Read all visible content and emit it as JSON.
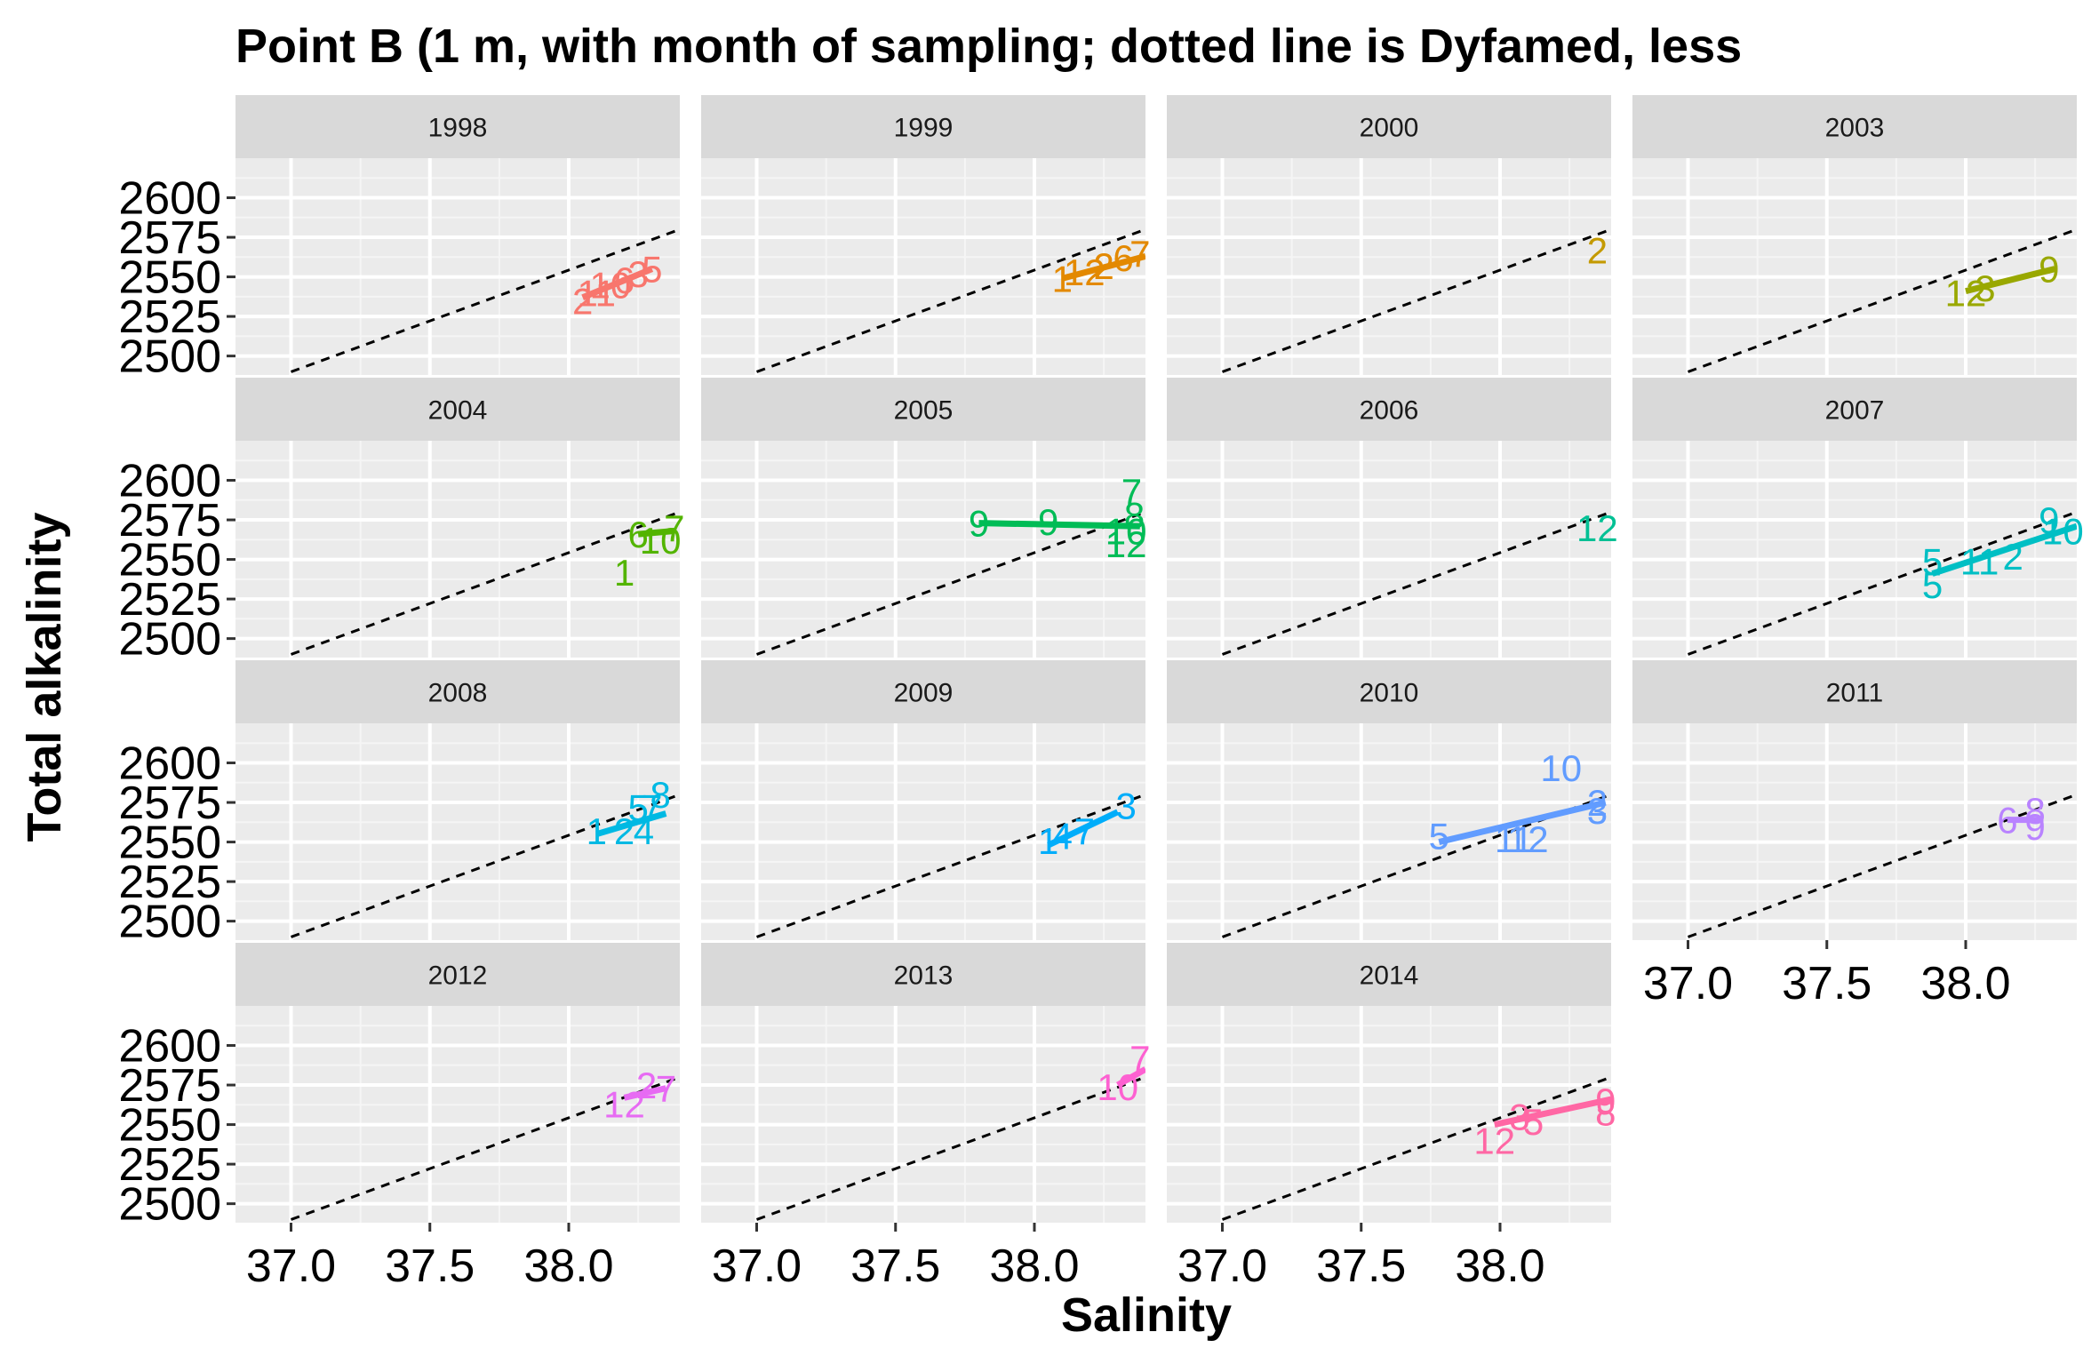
{
  "chart_data": {
    "type": "scatter",
    "title": "Point B (1 m, with month of sampling; dotted line is Dyfamed, less",
    "xlabel": "Salinity",
    "ylabel": "Total alkalinity",
    "xlim": [
      36.8,
      38.4
    ],
    "ylim": [
      2488,
      2625
    ],
    "x_ticks": [
      "37.0",
      "37.5",
      "38.0"
    ],
    "y_ticks": [
      "2500",
      "2525",
      "2550",
      "2575",
      "2600"
    ],
    "x_tick_values": [
      37.0,
      37.5,
      38.0
    ],
    "y_tick_values": [
      2500,
      2525,
      2550,
      2575,
      2600
    ],
    "reference_line": {
      "style": "dashed",
      "color": "#000000",
      "points": [
        [
          37.0,
          2490
        ],
        [
          38.4,
          2580
        ]
      ]
    },
    "panels": [
      {
        "label": "1998",
        "color": "#F8766D",
        "fit": [
          [
            38.05,
            2537
          ],
          [
            38.3,
            2555
          ]
        ],
        "points": [
          {
            "x": 38.05,
            "y": 2535,
            "m": "2"
          },
          {
            "x": 38.1,
            "y": 2540,
            "m": "11"
          },
          {
            "x": 38.15,
            "y": 2545,
            "m": "10"
          },
          {
            "x": 38.2,
            "y": 2548,
            "m": "6"
          },
          {
            "x": 38.25,
            "y": 2552,
            "m": "3"
          },
          {
            "x": 38.3,
            "y": 2555,
            "m": "5"
          }
        ]
      },
      {
        "label": "1999",
        "color": "#E38900",
        "fit": [
          [
            38.1,
            2549
          ],
          [
            38.4,
            2563
          ]
        ],
        "points": [
          {
            "x": 38.1,
            "y": 2549,
            "m": "1"
          },
          {
            "x": 38.18,
            "y": 2553,
            "m": "12"
          },
          {
            "x": 38.25,
            "y": 2557,
            "m": "2"
          },
          {
            "x": 38.32,
            "y": 2562,
            "m": "6"
          },
          {
            "x": 38.38,
            "y": 2565,
            "m": "7"
          }
        ]
      },
      {
        "label": "2000",
        "color": "#C49A00",
        "fit": [],
        "points": [
          {
            "x": 38.35,
            "y": 2567,
            "m": "2"
          }
        ]
      },
      {
        "label": "2003",
        "color": "#99A800",
        "fit": [
          [
            38.0,
            2541
          ],
          [
            38.32,
            2555
          ]
        ],
        "points": [
          {
            "x": 38.0,
            "y": 2540,
            "m": "12"
          },
          {
            "x": 38.07,
            "y": 2543,
            "m": "3"
          },
          {
            "x": 38.3,
            "y": 2555,
            "m": "9"
          }
        ]
      },
      {
        "label": "2004",
        "color": "#53B400",
        "fit": [
          [
            38.25,
            2566
          ],
          [
            38.38,
            2568
          ]
        ],
        "points": [
          {
            "x": 38.25,
            "y": 2566,
            "m": "6"
          },
          {
            "x": 38.2,
            "y": 2542,
            "m": "1"
          },
          {
            "x": 38.33,
            "y": 2562,
            "m": "10"
          },
          {
            "x": 38.38,
            "y": 2570,
            "m": "7"
          }
        ]
      },
      {
        "label": "2005",
        "color": "#00BC56",
        "fit": [
          [
            37.8,
            2573
          ],
          [
            38.38,
            2571
          ]
        ],
        "points": [
          {
            "x": 37.8,
            "y": 2573,
            "m": "9"
          },
          {
            "x": 38.05,
            "y": 2574,
            "m": "9"
          },
          {
            "x": 38.35,
            "y": 2593,
            "m": "7"
          },
          {
            "x": 38.36,
            "y": 2578,
            "m": "8"
          },
          {
            "x": 38.33,
            "y": 2568,
            "m": "10"
          },
          {
            "x": 38.33,
            "y": 2560,
            "m": "12"
          }
        ]
      },
      {
        "label": "2006",
        "color": "#00C094",
        "fit": [],
        "points": [
          {
            "x": 38.35,
            "y": 2570,
            "m": "12"
          }
        ]
      },
      {
        "label": "2007",
        "color": "#00BFC4",
        "fit": [
          [
            37.88,
            2541
          ],
          [
            38.4,
            2571
          ]
        ],
        "points": [
          {
            "x": 37.88,
            "y": 2534,
            "m": "5"
          },
          {
            "x": 37.88,
            "y": 2549,
            "m": "5"
          },
          {
            "x": 38.05,
            "y": 2549,
            "m": "11"
          },
          {
            "x": 38.17,
            "y": 2552,
            "m": "2"
          },
          {
            "x": 38.3,
            "y": 2575,
            "m": "9"
          },
          {
            "x": 38.35,
            "y": 2568,
            "m": "10"
          }
        ]
      },
      {
        "label": "2008",
        "color": "#00B9E3",
        "fit": [
          [
            38.1,
            2555
          ],
          [
            38.35,
            2568
          ]
        ],
        "points": [
          {
            "x": 38.1,
            "y": 2557,
            "m": "1"
          },
          {
            "x": 38.2,
            "y": 2557,
            "m": "2"
          },
          {
            "x": 38.27,
            "y": 2557,
            "m": "4"
          },
          {
            "x": 38.25,
            "y": 2572,
            "m": "5"
          },
          {
            "x": 38.3,
            "y": 2572,
            "m": "7"
          },
          {
            "x": 38.33,
            "y": 2580,
            "m": "8"
          }
        ]
      },
      {
        "label": "2009",
        "color": "#00ADFA",
        "fit": [
          [
            38.05,
            2548
          ],
          [
            38.3,
            2569
          ]
        ],
        "points": [
          {
            "x": 38.05,
            "y": 2551,
            "m": "1"
          },
          {
            "x": 38.1,
            "y": 2554,
            "m": "4"
          },
          {
            "x": 38.18,
            "y": 2557,
            "m": "7"
          },
          {
            "x": 38.33,
            "y": 2573,
            "m": "3"
          }
        ]
      },
      {
        "label": "2010",
        "color": "#619CFF",
        "fit": [
          [
            37.78,
            2550
          ],
          [
            38.38,
            2575
          ]
        ],
        "points": [
          {
            "x": 37.78,
            "y": 2554,
            "m": "5"
          },
          {
            "x": 38.05,
            "y": 2552,
            "m": "11"
          },
          {
            "x": 38.1,
            "y": 2552,
            "m": "12"
          },
          {
            "x": 38.35,
            "y": 2570,
            "m": "3"
          },
          {
            "x": 38.35,
            "y": 2575,
            "m": "2"
          },
          {
            "x": 38.22,
            "y": 2597,
            "m": "10"
          }
        ]
      },
      {
        "label": "2011",
        "color": "#B983FF",
        "fit": [
          [
            38.15,
            2564
          ],
          [
            38.28,
            2564
          ]
        ],
        "points": [
          {
            "x": 38.15,
            "y": 2564,
            "m": "6"
          },
          {
            "x": 38.25,
            "y": 2570,
            "m": "8"
          },
          {
            "x": 38.25,
            "y": 2560,
            "m": "9"
          }
        ]
      },
      {
        "label": "2012",
        "color": "#E76BF3",
        "fit": [
          [
            38.2,
            2567
          ],
          [
            38.35,
            2573
          ]
        ],
        "points": [
          {
            "x": 38.2,
            "y": 2563,
            "m": "12"
          },
          {
            "x": 38.28,
            "y": 2575,
            "m": "2"
          },
          {
            "x": 38.35,
            "y": 2573,
            "m": "7"
          }
        ]
      },
      {
        "label": "2013",
        "color": "#FD61D1",
        "fit": [
          [
            38.3,
            2575
          ],
          [
            38.4,
            2585
          ]
        ],
        "points": [
          {
            "x": 38.3,
            "y": 2574,
            "m": "10"
          },
          {
            "x": 38.38,
            "y": 2592,
            "m": "7"
          }
        ]
      },
      {
        "label": "2014",
        "color": "#FF67A4",
        "fit": [
          [
            37.98,
            2550
          ],
          [
            38.4,
            2566
          ]
        ],
        "points": [
          {
            "x": 37.98,
            "y": 2540,
            "m": "12"
          },
          {
            "x": 38.07,
            "y": 2555,
            "m": "3"
          },
          {
            "x": 38.12,
            "y": 2552,
            "m": "5"
          },
          {
            "x": 38.38,
            "y": 2558,
            "m": "8"
          },
          {
            "x": 38.38,
            "y": 2565,
            "m": "9"
          }
        ]
      }
    ]
  }
}
